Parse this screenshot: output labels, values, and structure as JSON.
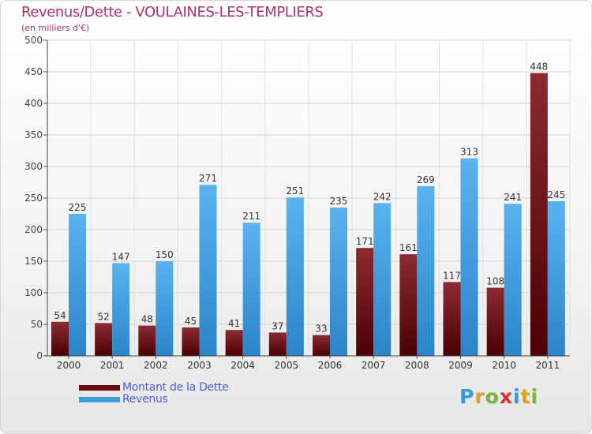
{
  "title": "Revenus/Dette - VOULAINES-LES-TEMPLIERS",
  "subtitle": "(en milliers d'€)",
  "legend": [
    {
      "label": "Montant de la Dette",
      "color": "#6b0a0f"
    },
    {
      "label": "Revenus",
      "color": "#3f9de2"
    }
  ],
  "logo": {
    "letters": [
      "P",
      "r",
      "o",
      "x",
      "i",
      "t",
      "i"
    ],
    "colors": [
      "#3a9ad9",
      "#e0a020",
      "#7cb33a",
      "#d9342b",
      "#3a9ad9",
      "#e0a020",
      "#7cb33a"
    ]
  },
  "chart_data": {
    "type": "bar",
    "title": "Revenus/Dette - VOULAINES-LES-TEMPLIERS",
    "ylabel": "(en milliers d'€)",
    "xlabel": "",
    "categories": [
      "2000",
      "2001",
      "2002",
      "2003",
      "2004",
      "2005",
      "2006",
      "2007",
      "2008",
      "2009",
      "2010",
      "2011"
    ],
    "series": [
      {
        "name": "Montant de la Dette",
        "color": "#6b0a0f",
        "values": [
          54,
          52,
          48,
          45,
          41,
          37,
          33,
          171,
          161,
          117,
          108,
          448
        ]
      },
      {
        "name": "Revenus",
        "color": "#3f9de2",
        "values": [
          225,
          147,
          150,
          271,
          211,
          251,
          235,
          242,
          269,
          313,
          241,
          245
        ]
      }
    ],
    "ylim": [
      0,
      500
    ],
    "yticks": [
      "0",
      "50",
      "100",
      "150",
      "200",
      "250",
      "300",
      "350",
      "400",
      "450",
      "500"
    ],
    "grid": true,
    "legend_position": "bottom-left"
  }
}
